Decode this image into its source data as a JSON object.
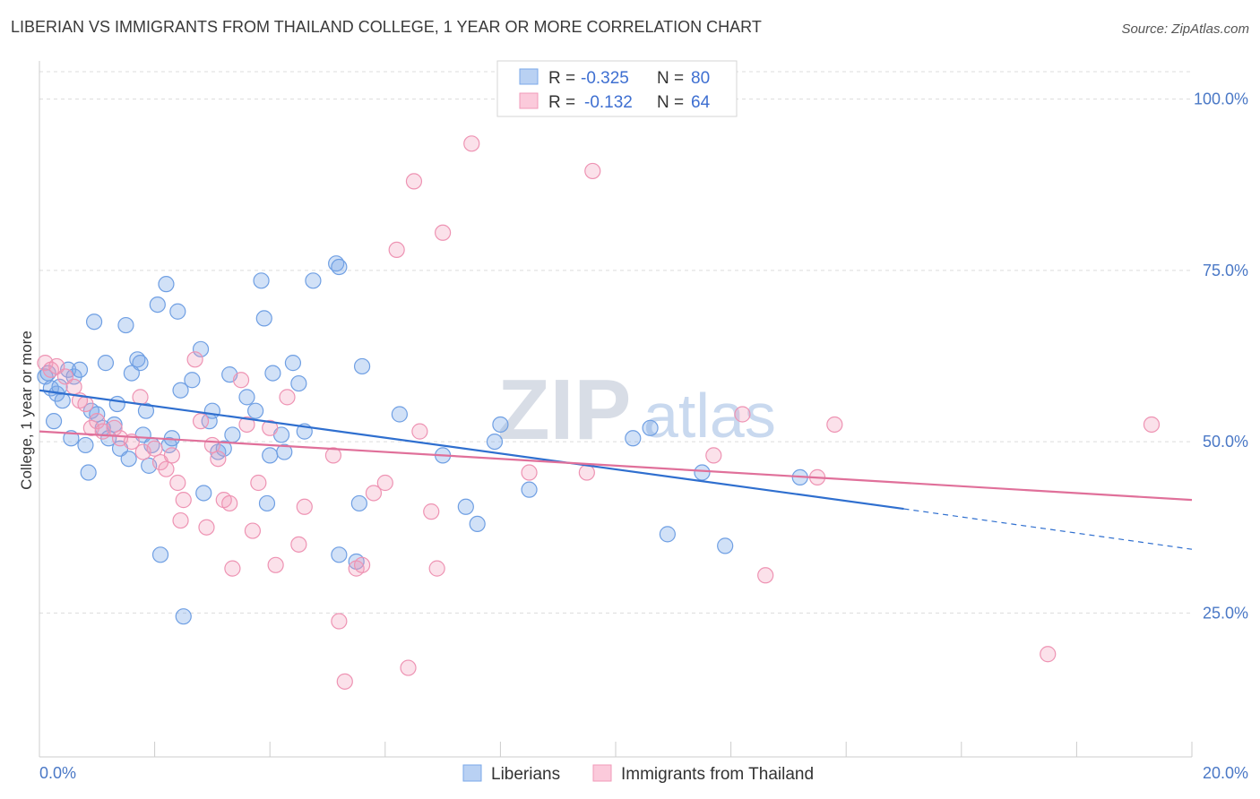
{
  "title": "LIBERIAN VS IMMIGRANTS FROM THAILAND COLLEGE, 1 YEAR OR MORE CORRELATION CHART",
  "source": "Source: ZipAtlas.com",
  "watermark": {
    "zip": "ZIP",
    "atlas": "atlas"
  },
  "colors": {
    "blue": "#7aa8e8",
    "blue_line": "#2f6fcf",
    "pink": "#f29ab8",
    "pink_line": "#e0709a",
    "tick": "#4a78c6"
  },
  "chart_data": {
    "type": "scatter",
    "title": "LIBERIAN VS IMMIGRANTS FROM THAILAND COLLEGE, 1 YEAR OR MORE CORRELATION CHART",
    "xlabel": "",
    "ylabel": "College, 1 year or more",
    "xlim": [
      0,
      20
    ],
    "ylim": [
      4,
      104
    ],
    "x_tick_labels": [
      {
        "value": 0,
        "label": "0.0%"
      },
      {
        "value": 20,
        "label": "20.0%"
      }
    ],
    "y_tick_labels": [
      {
        "value": 25,
        "label": "25.0%"
      },
      {
        "value": 50,
        "label": "50.0%"
      },
      {
        "value": 75,
        "label": "75.0%"
      },
      {
        "value": 100,
        "label": "100.0%"
      }
    ],
    "grid": true,
    "legend_top": [
      {
        "r_label": "R =",
        "r": "-0.325",
        "n_label": "N =",
        "n": "80"
      },
      {
        "r_label": "R =",
        "r": "-0.132",
        "n_label": "N =",
        "n": "64"
      }
    ],
    "series": [
      {
        "name": "Liberians",
        "color": "#7aa8e8",
        "trend": {
          "x": [
            0,
            15
          ],
          "y": [
            57.5,
            40.2
          ],
          "dashed_to": [
            20,
            34.3
          ]
        },
        "points": [
          [
            0.1,
            59.5
          ],
          [
            0.15,
            60
          ],
          [
            0.2,
            57.8
          ],
          [
            0.25,
            53
          ],
          [
            0.3,
            57
          ],
          [
            0.35,
            58
          ],
          [
            0.4,
            56
          ],
          [
            0.5,
            60.5
          ],
          [
            0.6,
            59.5
          ],
          [
            0.7,
            60.5
          ],
          [
            0.8,
            49.5
          ],
          [
            0.85,
            45.5
          ],
          [
            0.9,
            54.5
          ],
          [
            0.95,
            67.5
          ],
          [
            1.0,
            54
          ],
          [
            1.1,
            52
          ],
          [
            1.15,
            61.5
          ],
          [
            1.2,
            50.5
          ],
          [
            1.3,
            52.5
          ],
          [
            1.35,
            55.5
          ],
          [
            1.4,
            49
          ],
          [
            1.5,
            67
          ],
          [
            1.55,
            47.5
          ],
          [
            1.6,
            60
          ],
          [
            1.7,
            62
          ],
          [
            1.75,
            61.5
          ],
          [
            1.8,
            51
          ],
          [
            1.85,
            54.5
          ],
          [
            1.95,
            49.5
          ],
          [
            2.05,
            70
          ],
          [
            2.1,
            33.5
          ],
          [
            2.2,
            73
          ],
          [
            2.25,
            49.5
          ],
          [
            2.3,
            50.5
          ],
          [
            2.4,
            69
          ],
          [
            2.45,
            57.5
          ],
          [
            2.5,
            24.5
          ],
          [
            2.65,
            59
          ],
          [
            2.8,
            63.5
          ],
          [
            2.85,
            42.5
          ],
          [
            2.95,
            53
          ],
          [
            3.0,
            54.5
          ],
          [
            3.1,
            48.5
          ],
          [
            3.2,
            49
          ],
          [
            3.35,
            51
          ],
          [
            3.6,
            56.5
          ],
          [
            3.75,
            54.5
          ],
          [
            3.85,
            73.5
          ],
          [
            3.9,
            68
          ],
          [
            3.95,
            41
          ],
          [
            4.0,
            48
          ],
          [
            4.05,
            60
          ],
          [
            4.2,
            51
          ],
          [
            4.25,
            48.5
          ],
          [
            4.4,
            61.5
          ],
          [
            4.5,
            58.5
          ],
          [
            4.6,
            51.5
          ],
          [
            4.75,
            73.5
          ],
          [
            5.15,
            76
          ],
          [
            5.2,
            75.5
          ],
          [
            5.2,
            33.5
          ],
          [
            5.5,
            32.5
          ],
          [
            5.55,
            41
          ],
          [
            5.6,
            61
          ],
          [
            6.25,
            54
          ],
          [
            7.0,
            48
          ],
          [
            7.4,
            40.5
          ],
          [
            7.6,
            38
          ],
          [
            7.9,
            50
          ],
          [
            8.0,
            52.5
          ],
          [
            8.5,
            43
          ],
          [
            10.3,
            50.5
          ],
          [
            10.6,
            52
          ],
          [
            10.9,
            36.5
          ],
          [
            11.5,
            45.5
          ],
          [
            11.9,
            34.8
          ],
          [
            13.2,
            44.8
          ],
          [
            3.3,
            59.8
          ],
          [
            1.9,
            46.5
          ],
          [
            0.55,
            50.5
          ]
        ]
      },
      {
        "name": "Immigrants from Thailand",
        "color": "#f29ab8",
        "trend": {
          "x": [
            0,
            20
          ],
          "y": [
            51.5,
            41.5
          ]
        },
        "points": [
          [
            0.1,
            61.5
          ],
          [
            0.2,
            60.5
          ],
          [
            0.3,
            61
          ],
          [
            0.45,
            59.5
          ],
          [
            0.6,
            58
          ],
          [
            0.7,
            56
          ],
          [
            0.8,
            55.5
          ],
          [
            0.9,
            52
          ],
          [
            1.0,
            53
          ],
          [
            1.1,
            51.5
          ],
          [
            1.3,
            52
          ],
          [
            1.4,
            50.5
          ],
          [
            1.6,
            50
          ],
          [
            1.75,
            56.5
          ],
          [
            1.8,
            48.5
          ],
          [
            2.0,
            49
          ],
          [
            2.1,
            47
          ],
          [
            2.2,
            46
          ],
          [
            2.3,
            48
          ],
          [
            2.4,
            44
          ],
          [
            2.5,
            41.5
          ],
          [
            2.7,
            62
          ],
          [
            2.8,
            53
          ],
          [
            2.9,
            37.5
          ],
          [
            3.0,
            49.5
          ],
          [
            3.1,
            47.5
          ],
          [
            3.2,
            41.5
          ],
          [
            3.3,
            41
          ],
          [
            3.35,
            31.5
          ],
          [
            3.5,
            59
          ],
          [
            3.6,
            52.5
          ],
          [
            3.7,
            37
          ],
          [
            3.8,
            44
          ],
          [
            4.0,
            52
          ],
          [
            4.1,
            32
          ],
          [
            4.3,
            56.5
          ],
          [
            4.5,
            35
          ],
          [
            4.6,
            40.5
          ],
          [
            5.1,
            48
          ],
          [
            5.2,
            23.8
          ],
          [
            5.3,
            15
          ],
          [
            5.5,
            31.5
          ],
          [
            5.6,
            32
          ],
          [
            5.8,
            42.5
          ],
          [
            6.0,
            44
          ],
          [
            6.2,
            78
          ],
          [
            6.4,
            17
          ],
          [
            6.5,
            88
          ],
          [
            6.6,
            51.5
          ],
          [
            6.8,
            39.8
          ],
          [
            6.9,
            31.5
          ],
          [
            7.0,
            80.5
          ],
          [
            7.5,
            93.5
          ],
          [
            8.5,
            45.5
          ],
          [
            9.5,
            45.5
          ],
          [
            9.6,
            89.5
          ],
          [
            11.7,
            48
          ],
          [
            12.2,
            54
          ],
          [
            12.6,
            30.5
          ],
          [
            13.5,
            44.8
          ],
          [
            13.8,
            52.5
          ],
          [
            17.5,
            19
          ],
          [
            19.3,
            52.5
          ],
          [
            2.45,
            38.5
          ]
        ]
      }
    ]
  }
}
